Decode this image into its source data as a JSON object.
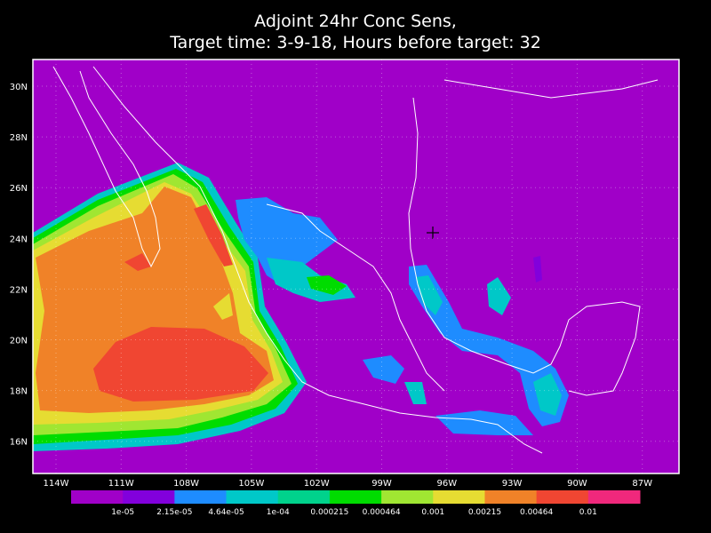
{
  "title": {
    "line1": "Adjoint 24hr Conc Sens,",
    "line2": "Target time: 3-9-18, Hours before target: 32"
  },
  "map": {
    "lat_labels": [
      "30N",
      "28N",
      "26N",
      "24N",
      "22N",
      "20N",
      "18N",
      "16N"
    ],
    "lon_labels": [
      "114W",
      "111W",
      "108W",
      "105W",
      "102W",
      "99W",
      "96W",
      "93W",
      "90W",
      "87W"
    ]
  },
  "colorbar": {
    "colors": [
      "#a000c8",
      "#8200dc",
      "#1e8cff",
      "#00c8c8",
      "#00d28c",
      "#00dc00",
      "#a0e632",
      "#e6dc32",
      "#f08228",
      "#f04632",
      "#f0287c"
    ],
    "labels": [
      "1e-05",
      "2.15e-05",
      "4.64e-05",
      "1e-04",
      "0.000215",
      "0.000464",
      "0.001",
      "0.00215",
      "0.00464",
      "0.01"
    ]
  }
}
